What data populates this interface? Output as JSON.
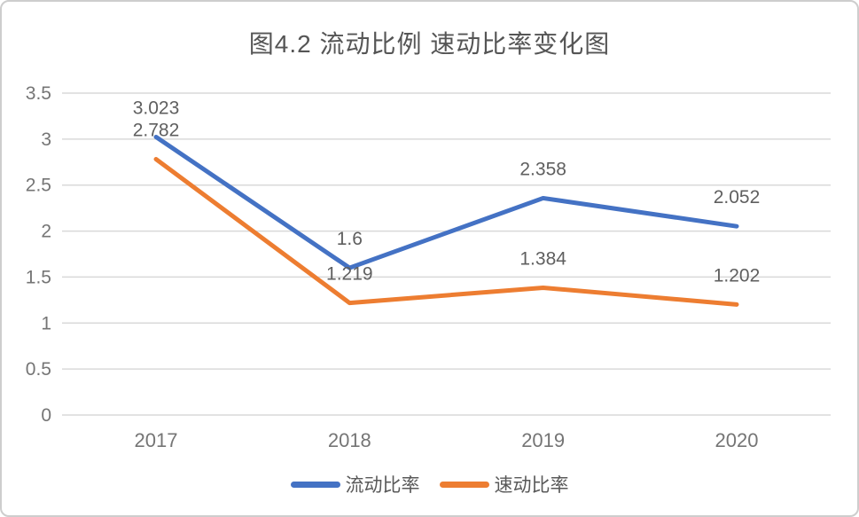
{
  "colors": {
    "background": "#FFFFFF",
    "border": "#CDCDCD",
    "grid": "#D9D9D9",
    "axis_text": "#757575",
    "label_text": "#5F5F5F",
    "title_text": "#555555"
  },
  "chart_data": {
    "type": "line",
    "title": "图4.2 流动比例 速动比率变化图",
    "categories": [
      "2017",
      "2018",
      "2019",
      "2020"
    ],
    "series": [
      {
        "name": "流动比率",
        "color": "#4472C4",
        "values": [
          3.023,
          1.6,
          2.358,
          2.052
        ],
        "labels": [
          "3.023",
          "1.6",
          "2.358",
          "2.052"
        ]
      },
      {
        "name": "速动比率",
        "color": "#ED7D31",
        "values": [
          2.782,
          1.219,
          1.384,
          1.202
        ],
        "labels": [
          "2.782",
          "1.219",
          "1.384",
          "1.202"
        ]
      }
    ],
    "y_ticks": [
      0,
      0.5,
      1,
      1.5,
      2,
      2.5,
      3,
      3.5
    ],
    "y_tick_labels": [
      "0",
      "0.5",
      "1",
      "1.5",
      "2",
      "2.5",
      "3",
      "3.5"
    ],
    "ylim": [
      0,
      3.5
    ],
    "grid": "horizontal",
    "legend_position": "bottom"
  }
}
